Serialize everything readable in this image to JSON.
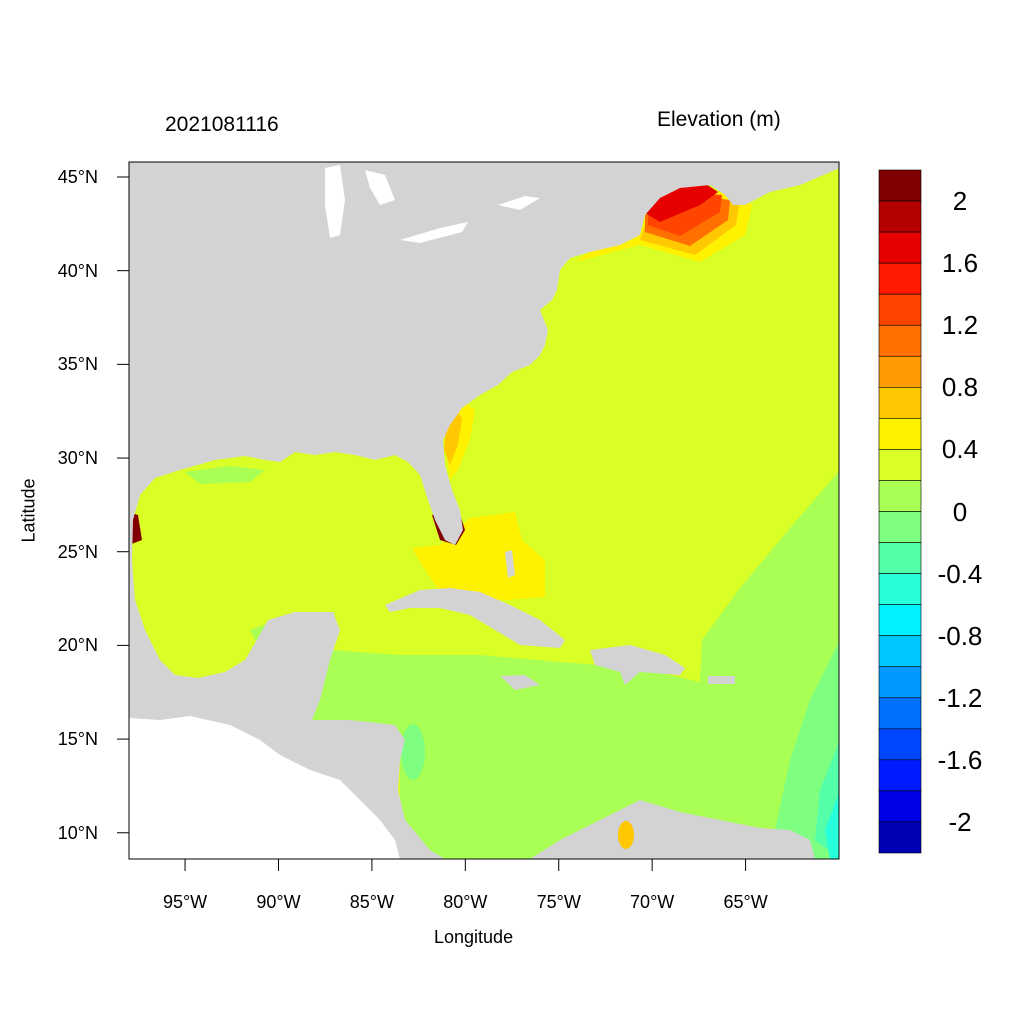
{
  "title_left": "2021081116",
  "title_right": "Elevation (m)",
  "xaxis": {
    "label": "Longitude",
    "ticks": [
      "95°W",
      "90°W",
      "85°W",
      "80°W",
      "75°W",
      "70°W",
      "65°W"
    ],
    "values": [
      -95,
      -90,
      -85,
      -80,
      -75,
      -70,
      -65
    ],
    "range": [
      -98,
      -60
    ]
  },
  "yaxis": {
    "label": "Latitude",
    "ticks": [
      "45°N",
      "40°N",
      "35°N",
      "30°N",
      "25°N",
      "20°N",
      "15°N",
      "10°N"
    ],
    "values": [
      45,
      40,
      35,
      30,
      25,
      20,
      15,
      10
    ],
    "range": [
      8.6,
      45.8
    ]
  },
  "colorbar": {
    "labels": [
      "2",
      "1.6",
      "1.2",
      "0.8",
      "0.4",
      "0",
      "-0.4",
      "-0.8",
      "-1.2",
      "-1.6",
      "-2"
    ],
    "levels": [
      2.2,
      2.0,
      1.8,
      1.6,
      1.4,
      1.2,
      1.0,
      0.8,
      0.6,
      0.4,
      0.2,
      0.0,
      -0.2,
      -0.4,
      -0.6,
      -0.8,
      -1.0,
      -1.2,
      -1.4,
      -1.6,
      -1.8,
      -2.0,
      -2.2
    ],
    "colors": [
      "#800000",
      "#b50000",
      "#e60000",
      "#ff1a00",
      "#ff4500",
      "#ff7000",
      "#ff9a00",
      "#ffc800",
      "#fff200",
      "#d9ff26",
      "#aaff55",
      "#7fff80",
      "#55ffaa",
      "#26ffd9",
      "#00f2ff",
      "#00c8ff",
      "#009aff",
      "#0070ff",
      "#0045ff",
      "#001aff",
      "#0000e6",
      "#0000b5"
    ]
  },
  "colors": {
    "land": "#d3d3d3",
    "outside_domain": "#ffffff",
    "background_ocean": "#d9ff26"
  }
}
